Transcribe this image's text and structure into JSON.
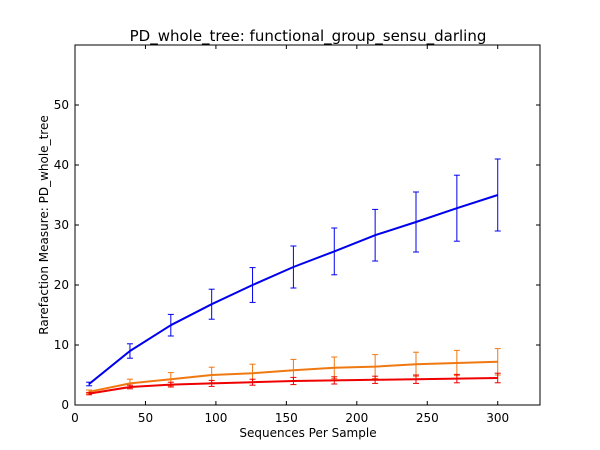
{
  "chart_data": {
    "type": "line",
    "title": "PD_whole_tree: functional_group_sensu_darling",
    "xlabel": "Sequences Per Sample",
    "ylabel": "Rarefaction Measure: PD_whole_tree",
    "xlim": [
      0,
      330
    ],
    "ylim": [
      0,
      60
    ],
    "xticks": [
      "0",
      "50",
      "100",
      "150",
      "200",
      "250",
      "300"
    ],
    "yticks": [
      "0",
      "10",
      "20",
      "30",
      "40",
      "50"
    ],
    "x": [
      10,
      39,
      68,
      97,
      126,
      155,
      184,
      213,
      242,
      271,
      300
    ],
    "series": [
      {
        "name": "blue",
        "color": "#0000ee",
        "values": [
          3.5,
          9.0,
          13.3,
          16.8,
          20.0,
          23.0,
          25.6,
          28.3,
          30.5,
          32.8,
          35.0
        ],
        "errors": [
          0.3,
          1.2,
          1.8,
          2.5,
          2.9,
          3.5,
          3.9,
          4.3,
          5.0,
          5.5,
          6.0
        ]
      },
      {
        "name": "orange",
        "color": "#f07810",
        "values": [
          2.2,
          3.6,
          4.3,
          5.0,
          5.3,
          5.8,
          6.2,
          6.4,
          6.8,
          7.0,
          7.2
        ],
        "errors": [
          0.3,
          0.7,
          1.1,
          1.3,
          1.5,
          1.8,
          1.8,
          2.0,
          2.0,
          2.1,
          2.2
        ]
      },
      {
        "name": "red",
        "color": "#ee0000",
        "values": [
          1.9,
          3.0,
          3.4,
          3.6,
          3.8,
          4.0,
          4.1,
          4.2,
          4.3,
          4.4,
          4.5
        ],
        "errors": [
          0.2,
          0.3,
          0.4,
          0.5,
          0.5,
          0.6,
          0.6,
          0.6,
          0.7,
          0.7,
          0.8
        ]
      }
    ]
  }
}
